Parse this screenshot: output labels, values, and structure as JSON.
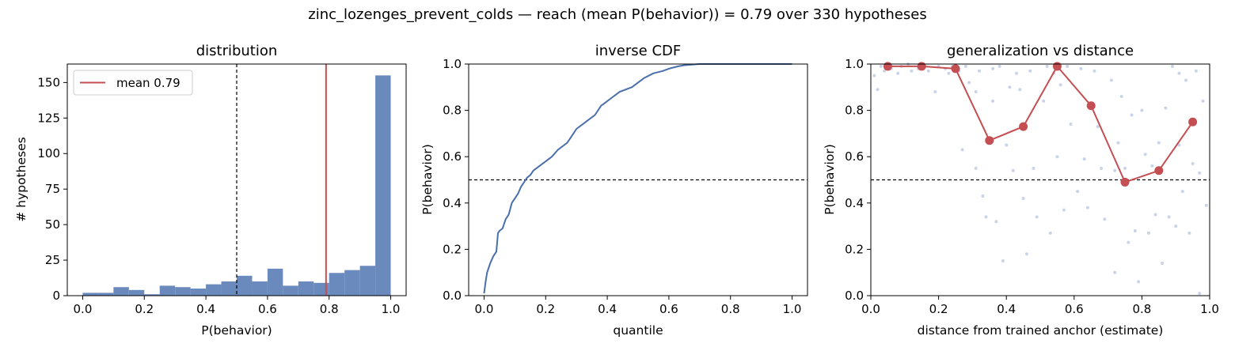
{
  "figure": {
    "suptitle": "zinc_lozenges_prevent_colds  —  reach (mean P(behavior)) = 0.79  over 330 hypotheses"
  },
  "colors": {
    "bar": "#6a89bd",
    "line": "#4a6fad",
    "mean": "#c44e52",
    "scatter": "#b8c6e0",
    "threshold": "#000000"
  },
  "chart_data": [
    {
      "type": "bar",
      "title": "distribution",
      "xlabel": "P(behavior)",
      "ylabel": "# hypotheses",
      "xlim": [
        -0.05,
        1.05
      ],
      "ylim": [
        0,
        163
      ],
      "xticks": [
        "0.0",
        "0.2",
        "0.4",
        "0.6",
        "0.8",
        "1.0"
      ],
      "yticks": [
        "0",
        "25",
        "50",
        "75",
        "100",
        "125",
        "150"
      ],
      "bin_width": 0.05,
      "bin_starts": [
        0.0,
        0.05,
        0.1,
        0.15,
        0.2,
        0.25,
        0.3,
        0.35,
        0.4,
        0.45,
        0.5,
        0.55,
        0.6,
        0.65,
        0.7,
        0.75,
        0.8,
        0.85,
        0.9,
        0.95
      ],
      "values": [
        2,
        2,
        6,
        4,
        1,
        7,
        6,
        5,
        8,
        10,
        14,
        10,
        19,
        7,
        10,
        9,
        16,
        18,
        21,
        155
      ],
      "mean": 0.79,
      "threshold": 0.5,
      "legend": {
        "label": "mean 0.79",
        "position": "upper-left"
      }
    },
    {
      "type": "line",
      "title": "inverse CDF",
      "xlabel": "quantile",
      "ylabel": "P(behavior)",
      "xlim": [
        -0.05,
        1.05
      ],
      "ylim": [
        0,
        1
      ],
      "xticks": [
        "0.0",
        "0.2",
        "0.4",
        "0.6",
        "0.8",
        "1.0"
      ],
      "yticks": [
        "0.0",
        "0.2",
        "0.4",
        "0.6",
        "0.8",
        "1.0"
      ],
      "threshold": 0.5,
      "x": [
        0.0,
        0.005,
        0.01,
        0.02,
        0.03,
        0.04,
        0.045,
        0.05,
        0.06,
        0.07,
        0.08,
        0.09,
        0.1,
        0.11,
        0.12,
        0.13,
        0.14,
        0.15,
        0.16,
        0.18,
        0.2,
        0.22,
        0.24,
        0.25,
        0.27,
        0.29,
        0.3,
        0.32,
        0.34,
        0.36,
        0.38,
        0.4,
        0.42,
        0.44,
        0.46,
        0.48,
        0.5,
        0.52,
        0.55,
        0.58,
        0.6,
        0.63,
        0.65,
        0.7,
        0.8,
        0.9,
        1.0
      ],
      "values": [
        0.01,
        0.06,
        0.1,
        0.14,
        0.17,
        0.19,
        0.27,
        0.28,
        0.29,
        0.33,
        0.35,
        0.4,
        0.42,
        0.44,
        0.47,
        0.49,
        0.51,
        0.52,
        0.54,
        0.56,
        0.58,
        0.6,
        0.63,
        0.64,
        0.66,
        0.7,
        0.72,
        0.74,
        0.76,
        0.78,
        0.82,
        0.84,
        0.86,
        0.88,
        0.89,
        0.9,
        0.92,
        0.94,
        0.96,
        0.97,
        0.98,
        0.99,
        0.995,
        1.0,
        1.0,
        1.0,
        1.0
      ]
    },
    {
      "type": "scatter",
      "title": "generalization vs distance",
      "xlabel": "distance from trained anchor (estimate)",
      "ylabel": "P(behavior)",
      "xlim": [
        0,
        1
      ],
      "ylim": [
        0,
        1
      ],
      "xticks": [
        "0.0",
        "0.2",
        "0.4",
        "0.6",
        "0.8",
        "1.0"
      ],
      "yticks": [
        "0.0",
        "0.2",
        "0.4",
        "0.6",
        "0.8",
        "1.0"
      ],
      "threshold": 0.5,
      "binned_means": {
        "x": [
          0.05,
          0.15,
          0.25,
          0.35,
          0.45,
          0.55,
          0.65,
          0.75,
          0.85,
          0.95
        ],
        "y": [
          0.99,
          0.99,
          0.98,
          0.67,
          0.73,
          0.99,
          0.82,
          0.49,
          0.54,
          0.75
        ]
      },
      "scatter_points": [
        [
          0.01,
          0.95
        ],
        [
          0.02,
          0.89
        ],
        [
          0.03,
          0.99
        ],
        [
          0.04,
          0.97
        ],
        [
          0.06,
          0.98
        ],
        [
          0.08,
          0.96
        ],
        [
          0.09,
          0.99
        ],
        [
          0.11,
          1.0
        ],
        [
          0.12,
          0.97
        ],
        [
          0.14,
          0.98
        ],
        [
          0.16,
          0.99
        ],
        [
          0.17,
          0.97
        ],
        [
          0.19,
          0.88
        ],
        [
          0.2,
          0.99
        ],
        [
          0.22,
          0.98
        ],
        [
          0.23,
          0.96
        ],
        [
          0.24,
          0.99
        ],
        [
          0.26,
          0.97
        ],
        [
          0.27,
          0.63
        ],
        [
          0.28,
          0.99
        ],
        [
          0.29,
          0.92
        ],
        [
          0.31,
          0.88
        ],
        [
          0.31,
          0.55
        ],
        [
          0.32,
          0.97
        ],
        [
          0.33,
          0.43
        ],
        [
          0.34,
          0.34
        ],
        [
          0.36,
          0.98
        ],
        [
          0.36,
          0.84
        ],
        [
          0.37,
          0.32
        ],
        [
          0.38,
          0.99
        ],
        [
          0.39,
          0.15
        ],
        [
          0.4,
          0.65
        ],
        [
          0.41,
          0.9
        ],
        [
          0.42,
          0.54
        ],
        [
          0.43,
          0.96
        ],
        [
          0.44,
          0.89
        ],
        [
          0.45,
          0.42
        ],
        [
          0.46,
          0.18
        ],
        [
          0.47,
          0.97
        ],
        [
          0.48,
          0.55
        ],
        [
          0.49,
          0.34
        ],
        [
          0.51,
          0.84
        ],
        [
          0.52,
          0.99
        ],
        [
          0.53,
          0.27
        ],
        [
          0.54,
          0.96
        ],
        [
          0.55,
          0.6
        ],
        [
          0.56,
          0.91
        ],
        [
          0.57,
          0.37
        ],
        [
          0.58,
          0.99
        ],
        [
          0.59,
          0.74
        ],
        [
          0.61,
          0.45
        ],
        [
          0.62,
          0.98
        ],
        [
          0.63,
          0.59
        ],
        [
          0.64,
          0.38
        ],
        [
          0.66,
          0.97
        ],
        [
          0.67,
          0.73
        ],
        [
          0.68,
          0.55
        ],
        [
          0.69,
          0.33
        ],
        [
          0.71,
          0.93
        ],
        [
          0.72,
          0.54
        ],
        [
          0.72,
          0.1
        ],
        [
          0.73,
          0.66
        ],
        [
          0.74,
          0.86
        ],
        [
          0.75,
          0.55
        ],
        [
          0.76,
          0.23
        ],
        [
          0.77,
          0.78
        ],
        [
          0.78,
          0.28
        ],
        [
          0.79,
          0.06
        ],
        [
          0.8,
          0.8
        ],
        [
          0.81,
          0.61
        ],
        [
          0.82,
          0.27
        ],
        [
          0.83,
          0.56
        ],
        [
          0.84,
          0.35
        ],
        [
          0.85,
          0.66
        ],
        [
          0.86,
          0.14
        ],
        [
          0.87,
          0.81
        ],
        [
          0.88,
          0.34
        ],
        [
          0.89,
          0.99
        ],
        [
          0.9,
          0.3
        ],
        [
          0.91,
          0.96
        ],
        [
          0.91,
          0.65
        ],
        [
          0.92,
          0.45
        ],
        [
          0.93,
          0.93
        ],
        [
          0.94,
          0.27
        ],
        [
          0.95,
          0.57
        ],
        [
          0.96,
          0.97
        ],
        [
          0.97,
          0.01
        ],
        [
          0.98,
          0.84
        ],
        [
          0.99,
          0.39
        ],
        [
          0.97,
          0.53
        ]
      ]
    }
  ]
}
